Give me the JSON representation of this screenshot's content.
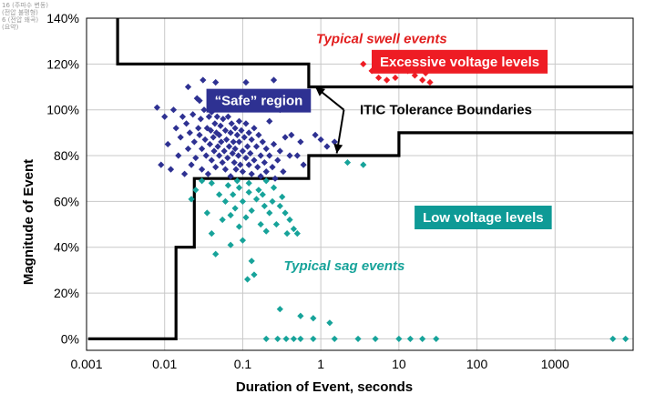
{
  "chart_data": {
    "type": "scatter",
    "title": "",
    "xlabel": "Duration of Event, seconds",
    "ylabel": "Magnitude of Event",
    "x_scale": "log",
    "xlim": [
      0.001,
      10000
    ],
    "ylim": [
      -5,
      140
    ],
    "x_ticks": [
      0.001,
      0.01,
      0.1,
      1,
      10,
      100,
      1000
    ],
    "x_tick_labels": [
      "0.001",
      "0.01",
      "0.1",
      "1",
      "10",
      "100",
      "1000"
    ],
    "y_ticks": [
      0,
      20,
      40,
      60,
      80,
      100,
      120,
      140
    ],
    "y_tick_labels": [
      "0%",
      "20%",
      "40%",
      "60%",
      "80%",
      "100%",
      "120%",
      "140%"
    ],
    "grid": true,
    "corner_note": [
      "16 (주파수 변동)",
      "(전압 불평형)",
      "6 (전압 왜곡)",
      "(요약)"
    ],
    "boundaries": [
      {
        "name": "upper",
        "x": [
          0.0025,
          0.0025,
          0.7,
          0.7,
          10000
        ],
        "y": [
          140,
          120,
          120,
          110,
          110
        ]
      },
      {
        "name": "lower",
        "x": [
          0.00105,
          0.014,
          0.014,
          0.024,
          0.024,
          0.7,
          0.7,
          10,
          10,
          10000
        ],
        "y": [
          0,
          0,
          40,
          40,
          70,
          70,
          80,
          80,
          90,
          90
        ]
      }
    ],
    "annotations": [
      {
        "id": "swell",
        "text": "Typical swell events",
        "x": 6,
        "y": 131,
        "color": "#e21e1e",
        "style": "italic"
      },
      {
        "id": "excessive",
        "text": "Excessive voltage levels",
        "x": 60,
        "y": 121,
        "box_fill": "#ee1c24",
        "color": "#ffffff"
      },
      {
        "id": "safe",
        "text": "“Safe” region",
        "x": 0.16,
        "y": 104,
        "box_fill": "#2e3192",
        "color": "#ffffff"
      },
      {
        "id": "itic",
        "text": "ITIC Tolerance Boundaries",
        "x": 40,
        "y": 100,
        "color": "#000000"
      },
      {
        "id": "low",
        "text": "Low voltage levels",
        "x": 120,
        "y": 53,
        "box_fill": "#0e9a96",
        "color": "#ffffff"
      },
      {
        "id": "sag",
        "text": "Typical sag events",
        "x": 2,
        "y": 32,
        "color": "#17a39a",
        "style": "italic"
      }
    ],
    "series": [
      {
        "name": "Typical swell events",
        "color": "#ee1c24",
        "points": [
          [
            3.5,
            120
          ],
          [
            4.5,
            117
          ],
          [
            5.5,
            114
          ],
          [
            7,
            113
          ],
          [
            9,
            114
          ],
          [
            10,
            122
          ],
          [
            13,
            117
          ],
          [
            16,
            115
          ],
          [
            20,
            113
          ],
          [
            22,
            116
          ],
          [
            25,
            112
          ]
        ]
      },
      {
        "name": "“Safe” region",
        "color": "#2e3192",
        "points": [
          [
            0.008,
            101
          ],
          [
            0.009,
            76
          ],
          [
            0.01,
            97
          ],
          [
            0.011,
            85
          ],
          [
            0.012,
            74
          ],
          [
            0.013,
            100
          ],
          [
            0.014,
            92
          ],
          [
            0.015,
            80
          ],
          [
            0.016,
            88
          ],
          [
            0.017,
            97
          ],
          [
            0.018,
            72
          ],
          [
            0.019,
            94
          ],
          [
            0.02,
            110
          ],
          [
            0.02,
            83
          ],
          [
            0.021,
            90
          ],
          [
            0.022,
            76
          ],
          [
            0.023,
            98
          ],
          [
            0.024,
            86
          ],
          [
            0.025,
            79
          ],
          [
            0.026,
            105
          ],
          [
            0.027,
            92
          ],
          [
            0.028,
            89
          ],
          [
            0.029,
            96
          ],
          [
            0.03,
            83
          ],
          [
            0.03,
            74
          ],
          [
            0.031,
            113
          ],
          [
            0.032,
            100
          ],
          [
            0.033,
            87
          ],
          [
            0.034,
            80
          ],
          [
            0.035,
            92
          ],
          [
            0.036,
            72
          ],
          [
            0.037,
            97
          ],
          [
            0.038,
            85
          ],
          [
            0.039,
            91
          ],
          [
            0.04,
            78
          ],
          [
            0.04,
            99
          ],
          [
            0.041,
            107
          ],
          [
            0.042,
            88
          ],
          [
            0.043,
            82
          ],
          [
            0.044,
            94
          ],
          [
            0.045,
            75
          ],
          [
            0.046,
            90
          ],
          [
            0.047,
            97
          ],
          [
            0.048,
            84
          ],
          [
            0.05,
            80
          ],
          [
            0.05,
            89
          ],
          [
            0.052,
            93
          ],
          [
            0.053,
            86
          ],
          [
            0.055,
            77
          ],
          [
            0.056,
            96
          ],
          [
            0.058,
            82
          ],
          [
            0.06,
            91
          ],
          [
            0.06,
            74
          ],
          [
            0.062,
            87
          ],
          [
            0.064,
            79
          ],
          [
            0.065,
            97
          ],
          [
            0.067,
            84
          ],
          [
            0.07,
            90
          ],
          [
            0.07,
            71
          ],
          [
            0.072,
            94
          ],
          [
            0.074,
            81
          ],
          [
            0.076,
            86
          ],
          [
            0.078,
            77
          ],
          [
            0.08,
            92
          ],
          [
            0.08,
            83
          ],
          [
            0.082,
            74
          ],
          [
            0.085,
            89
          ],
          [
            0.088,
            80
          ],
          [
            0.09,
            95
          ],
          [
            0.09,
            86
          ],
          [
            0.093,
            76
          ],
          [
            0.096,
            91
          ],
          [
            0.1,
            82
          ],
          [
            0.1,
            73
          ],
          [
            0.105,
            88
          ],
          [
            0.11,
            79
          ],
          [
            0.11,
            94
          ],
          [
            0.115,
            84
          ],
          [
            0.12,
            76
          ],
          [
            0.12,
            90
          ],
          [
            0.125,
            81
          ],
          [
            0.13,
            87
          ],
          [
            0.13,
            72
          ],
          [
            0.14,
            92
          ],
          [
            0.14,
            78
          ],
          [
            0.15,
            84
          ],
          [
            0.155,
            75
          ],
          [
            0.16,
            89
          ],
          [
            0.17,
            80
          ],
          [
            0.17,
            71
          ],
          [
            0.18,
            86
          ],
          [
            0.19,
            77
          ],
          [
            0.2,
            83
          ],
          [
            0.2,
            73
          ],
          [
            0.22,
            80
          ],
          [
            0.22,
            95
          ],
          [
            0.24,
            75
          ],
          [
            0.25,
            85
          ],
          [
            0.26,
            70
          ],
          [
            0.28,
            78
          ],
          [
            0.3,
            100
          ],
          [
            0.3,
            82
          ],
          [
            0.33,
            73
          ],
          [
            0.35,
            88
          ],
          [
            0.4,
            80
          ],
          [
            0.42,
            89
          ],
          [
            0.5,
            80
          ],
          [
            0.55,
            86
          ],
          [
            0.6,
            76
          ],
          [
            1,
            87
          ],
          [
            1.2,
            84
          ],
          [
            1.5,
            86
          ],
          [
            0.85,
            89
          ],
          [
            0.045,
            112
          ],
          [
            0.028,
            104
          ],
          [
            0.11,
            112
          ],
          [
            0.25,
            113
          ]
        ]
      },
      {
        "name": "Typical sag events",
        "color": "#17a39a",
        "points": [
          [
            0.022,
            61
          ],
          [
            0.025,
            65
          ],
          [
            0.03,
            69
          ],
          [
            0.035,
            55
          ],
          [
            0.04,
            68
          ],
          [
            0.04,
            46
          ],
          [
            0.045,
            37
          ],
          [
            0.05,
            63
          ],
          [
            0.055,
            52
          ],
          [
            0.06,
            60
          ],
          [
            0.065,
            67
          ],
          [
            0.07,
            54
          ],
          [
            0.07,
            41
          ],
          [
            0.075,
            63
          ],
          [
            0.08,
            57
          ],
          [
            0.085,
            69
          ],
          [
            0.09,
            49
          ],
          [
            0.09,
            66
          ],
          [
            0.1,
            60
          ],
          [
            0.1,
            43
          ],
          [
            0.11,
            53
          ],
          [
            0.115,
            26
          ],
          [
            0.12,
            64
          ],
          [
            0.12,
            68
          ],
          [
            0.13,
            56
          ],
          [
            0.13,
            34
          ],
          [
            0.14,
            28
          ],
          [
            0.15,
            61
          ],
          [
            0.16,
            65
          ],
          [
            0.17,
            50
          ],
          [
            0.18,
            63
          ],
          [
            0.19,
            58
          ],
          [
            0.2,
            47
          ],
          [
            0.2,
            69
          ],
          [
            0.22,
            55
          ],
          [
            0.24,
            60
          ],
          [
            0.25,
            66
          ],
          [
            0.27,
            50
          ],
          [
            0.3,
            58
          ],
          [
            0.3,
            13
          ],
          [
            0.32,
            62
          ],
          [
            0.35,
            55
          ],
          [
            0.37,
            46
          ],
          [
            0.4,
            52
          ],
          [
            0.45,
            48
          ],
          [
            0.5,
            46
          ],
          [
            0.55,
            10
          ],
          [
            0.8,
            9
          ],
          [
            1.3,
            7
          ],
          [
            2.2,
            77
          ],
          [
            3.5,
            76
          ],
          [
            0.2,
            0
          ],
          [
            0.28,
            0
          ],
          [
            0.36,
            0
          ],
          [
            0.45,
            0
          ],
          [
            0.55,
            0
          ],
          [
            0.8,
            0
          ],
          [
            1.5,
            0
          ],
          [
            3,
            0
          ],
          [
            5,
            0
          ],
          [
            10,
            0
          ],
          [
            14,
            0
          ],
          [
            20,
            0
          ],
          [
            30,
            0
          ],
          [
            5500,
            0
          ],
          [
            8000,
            0
          ]
        ]
      }
    ]
  }
}
